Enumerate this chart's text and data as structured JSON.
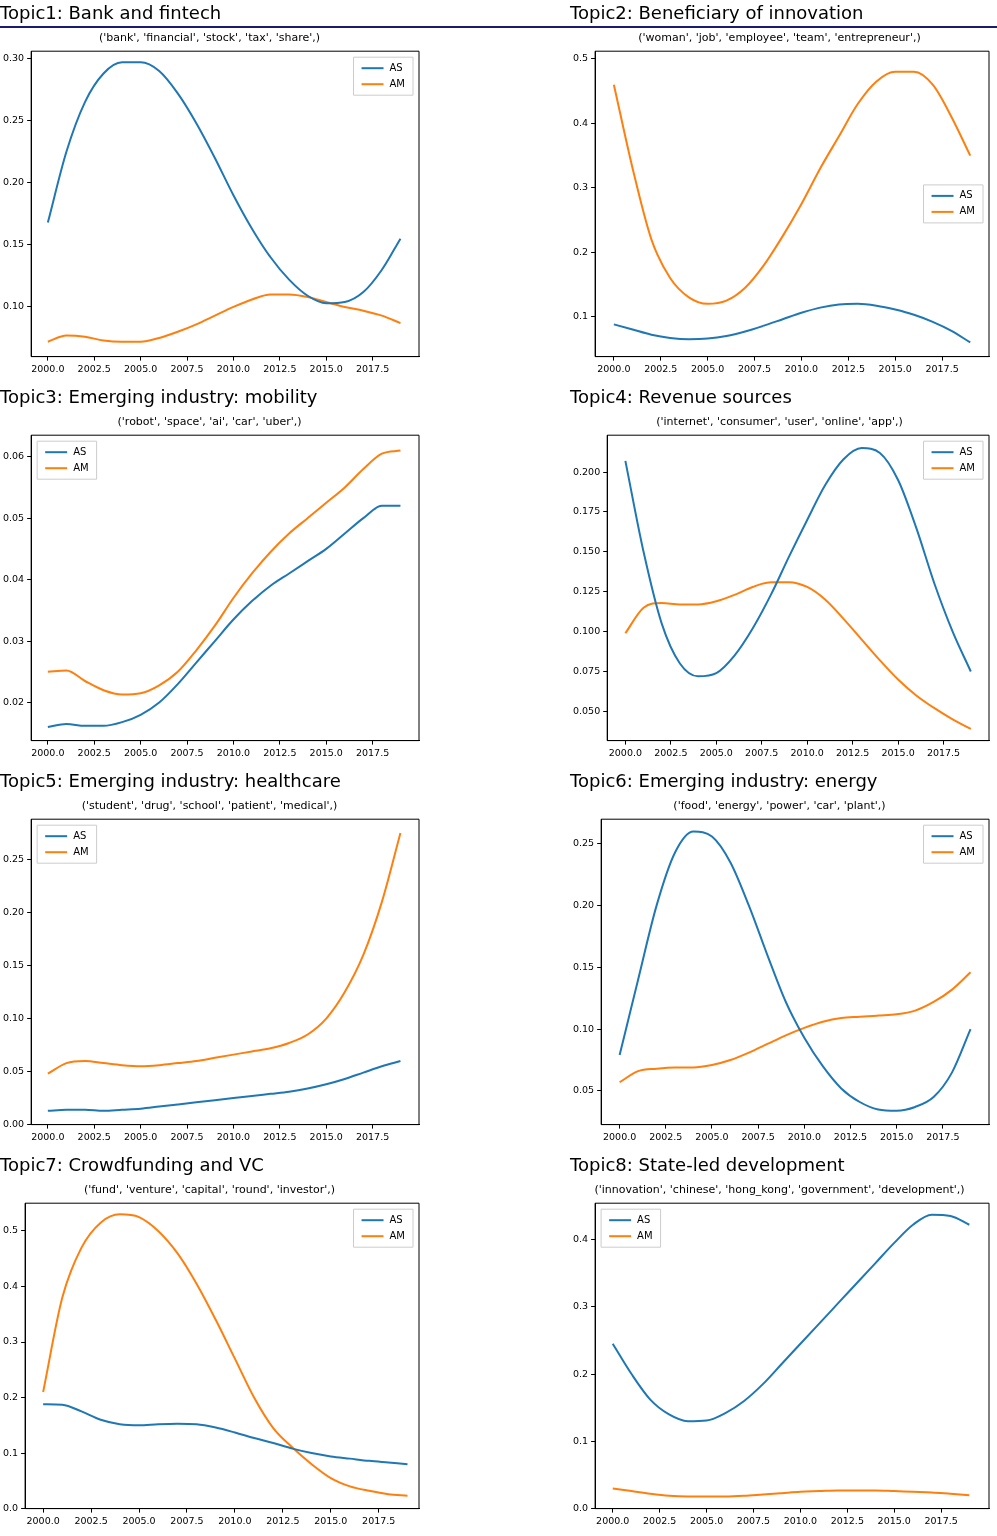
{
  "chart_data": [
    {
      "type": "line",
      "title": "Topic1: Bank and fintech",
      "subtitle": "('bank', 'financial', 'stock', 'tax', 'share',)",
      "x": [
        2000,
        2001,
        2002,
        2003,
        2004,
        2005,
        2006,
        2007,
        2008,
        2009,
        2010,
        2011,
        2012,
        2013,
        2014,
        2015,
        2016,
        2017,
        2018,
        2019
      ],
      "xlim": [
        1999.1,
        2020.0
      ],
      "xticks": [
        {
          "value": 2000,
          "label": "2000.0"
        },
        {
          "value": 2002.5,
          "label": "2002.5"
        },
        {
          "value": 2005,
          "label": "2005.0"
        },
        {
          "value": 2007.5,
          "label": "2007.5"
        },
        {
          "value": 2010,
          "label": "2010.0"
        },
        {
          "value": 2012.5,
          "label": "2012.5"
        },
        {
          "value": 2015,
          "label": "2015.0"
        },
        {
          "value": 2017.5,
          "label": "2017.5"
        }
      ],
      "ylim": [
        0.06,
        0.306
      ],
      "yticks": [
        {
          "value": 0.1,
          "label": "0.10"
        },
        {
          "value": 0.15,
          "label": "0.15"
        },
        {
          "value": 0.2,
          "label": "0.20"
        },
        {
          "value": 0.25,
          "label": "0.25"
        },
        {
          "value": 0.3,
          "label": "0.30"
        }
      ],
      "legend": "top right",
      "series": [
        {
          "name": "AS",
          "color": "#1f77b4",
          "values": [
            0.168,
            0.225,
            0.265,
            0.288,
            0.297,
            0.297,
            0.29,
            0.272,
            0.248,
            0.22,
            0.19,
            0.163,
            0.14,
            0.122,
            0.109,
            0.103,
            0.104,
            0.112,
            0.13,
            0.155
          ]
        },
        {
          "name": "AM",
          "color": "#ff7f0e",
          "values": [
            0.072,
            0.077,
            0.076,
            0.073,
            0.072,
            0.072,
            0.075,
            0.08,
            0.086,
            0.093,
            0.1,
            0.106,
            0.11,
            0.11,
            0.108,
            0.104,
            0.1,
            0.097,
            0.093,
            0.087
          ]
        }
      ]
    },
    {
      "type": "line",
      "title": "Topic2: Beneficiary of innovation",
      "subtitle": "('woman', 'job', 'employee', 'team', 'entrepreneur',)",
      "x": [
        2000,
        2001,
        2002,
        2003,
        2004,
        2005,
        2006,
        2007,
        2008,
        2009,
        2010,
        2011,
        2012,
        2013,
        2014,
        2015,
        2016,
        2017,
        2018,
        2019
      ],
      "xlim": [
        1999.0,
        2020.0
      ],
      "xticks": [
        {
          "value": 2000,
          "label": "2000.0"
        },
        {
          "value": 2002.5,
          "label": "2002.5"
        },
        {
          "value": 2005,
          "label": "2005.0"
        },
        {
          "value": 2007.5,
          "label": "2007.5"
        },
        {
          "value": 2010,
          "label": "2010.0"
        },
        {
          "value": 2012.5,
          "label": "2012.5"
        },
        {
          "value": 2015,
          "label": "2015.0"
        },
        {
          "value": 2017.5,
          "label": "2017.5"
        }
      ],
      "ylim": [
        0.038,
        0.512
      ],
      "yticks": [
        0.1,
        0.2,
        0.3,
        0.4,
        0.5
      ],
      "legend": "right",
      "series": [
        {
          "name": "AS",
          "color": "#1f77b4",
          "values": [
            0.088,
            0.08,
            0.072,
            0.067,
            0.065,
            0.066,
            0.07,
            0.077,
            0.086,
            0.096,
            0.106,
            0.114,
            0.119,
            0.12,
            0.117,
            0.111,
            0.103,
            0.092,
            0.078,
            0.06
          ]
        },
        {
          "name": "AM",
          "color": "#ff7f0e",
          "values": [
            0.46,
            0.33,
            0.22,
            0.16,
            0.13,
            0.12,
            0.125,
            0.145,
            0.18,
            0.225,
            0.275,
            0.33,
            0.38,
            0.43,
            0.465,
            0.48,
            0.48,
            0.46,
            0.41,
            0.35
          ]
        }
      ]
    },
    {
      "type": "line",
      "title": "Topic3: Emerging industry: mobility",
      "subtitle": "('robot', 'space', 'ai', 'car', 'uber',)",
      "x": [
        2000,
        2001,
        2002,
        2003,
        2004,
        2005,
        2006,
        2007,
        2008,
        2009,
        2010,
        2011,
        2012,
        2013,
        2014,
        2015,
        2016,
        2017,
        2018,
        2019
      ],
      "xlim": [
        1999.1,
        2020.0
      ],
      "xticks": [
        {
          "value": 2000,
          "label": "2000.0"
        },
        {
          "value": 2002.5,
          "label": "2002.5"
        },
        {
          "value": 2005,
          "label": "2005.0"
        },
        {
          "value": 2007.5,
          "label": "2007.5"
        },
        {
          "value": 2010,
          "label": "2010.0"
        },
        {
          "value": 2012.5,
          "label": "2012.5"
        },
        {
          "value": 2015,
          "label": "2015.0"
        },
        {
          "value": 2017.5,
          "label": "2017.5"
        }
      ],
      "ylim": [
        0.0138,
        0.0635
      ],
      "yticks": [
        0.02,
        0.03,
        0.04,
        0.05,
        0.06
      ],
      "legend": "top left",
      "series": [
        {
          "name": "AS",
          "color": "#1f77b4",
          "values": [
            0.016,
            0.0165,
            0.0162,
            0.0162,
            0.0168,
            0.018,
            0.02,
            0.023,
            0.0265,
            0.03,
            0.0335,
            0.0365,
            0.039,
            0.041,
            0.043,
            0.045,
            0.0475,
            0.05,
            0.052,
            0.052
          ]
        },
        {
          "name": "AM",
          "color": "#ff7f0e",
          "values": [
            0.025,
            0.0252,
            0.0235,
            0.022,
            0.0213,
            0.0215,
            0.0228,
            0.025,
            0.0285,
            0.0325,
            0.037,
            0.041,
            0.0445,
            0.0475,
            0.05,
            0.0525,
            0.055,
            0.058,
            0.0605,
            0.061
          ]
        }
      ]
    },
    {
      "type": "line",
      "title": "Topic4: Revenue sources",
      "subtitle": "('internet', 'consumer', 'user', 'online', 'app',)",
      "x": [
        2000,
        2001,
        2002,
        2003,
        2004,
        2005,
        2006,
        2007,
        2008,
        2009,
        2010,
        2011,
        2012,
        2013,
        2014,
        2015,
        2016,
        2017,
        2018,
        2019
      ],
      "xlim": [
        1999.0,
        2020.0
      ],
      "xticks": [
        {
          "value": 2000,
          "label": "2000.0"
        },
        {
          "value": 2002.5,
          "label": "2002.5"
        },
        {
          "value": 2005,
          "label": "2005.0"
        },
        {
          "value": 2007.5,
          "label": "2007.5"
        },
        {
          "value": 2010,
          "label": "2010.0"
        },
        {
          "value": 2012.5,
          "label": "2012.5"
        },
        {
          "value": 2015,
          "label": "2015.0"
        },
        {
          "value": 2017.5,
          "label": "2017.5"
        }
      ],
      "ylim": [
        0.0317,
        0.2231
      ],
      "yticks": [
        {
          "value": 0.05,
          "label": "0.050"
        },
        {
          "value": 0.075,
          "label": "0.075"
        },
        {
          "value": 0.1,
          "label": "0.100"
        },
        {
          "value": 0.125,
          "label": "0.125"
        },
        {
          "value": 0.15,
          "label": "0.150"
        },
        {
          "value": 0.175,
          "label": "0.175"
        },
        {
          "value": 0.2,
          "label": "0.200"
        }
      ],
      "legend": "top right",
      "series": [
        {
          "name": "AS",
          "color": "#1f77b4",
          "values": [
            0.207,
            0.15,
            0.105,
            0.08,
            0.072,
            0.074,
            0.085,
            0.102,
            0.123,
            0.147,
            0.17,
            0.192,
            0.208,
            0.215,
            0.212,
            0.195,
            0.165,
            0.13,
            0.1,
            0.075
          ]
        },
        {
          "name": "AM",
          "color": "#ff7f0e",
          "values": [
            0.099,
            0.115,
            0.118,
            0.117,
            0.117,
            0.119,
            0.123,
            0.128,
            0.131,
            0.131,
            0.128,
            0.12,
            0.108,
            0.095,
            0.082,
            0.07,
            0.06,
            0.052,
            0.045,
            0.039
          ]
        }
      ]
    },
    {
      "type": "line",
      "title": "Topic5: Emerging industry: healthcare",
      "subtitle": "('student', 'drug', 'school', 'patient', 'medical',)",
      "x": [
        2000,
        2001,
        2002,
        2003,
        2004,
        2005,
        2006,
        2007,
        2008,
        2009,
        2010,
        2011,
        2012,
        2013,
        2014,
        2015,
        2016,
        2017,
        2018,
        2019
      ],
      "xlim": [
        1999.1,
        2020.0
      ],
      "xticks": [
        {
          "value": 2000,
          "label": "2000.0"
        },
        {
          "value": 2002.5,
          "label": "2002.5"
        },
        {
          "value": 2005,
          "label": "2005.0"
        },
        {
          "value": 2007.5,
          "label": "2007.5"
        },
        {
          "value": 2010,
          "label": "2010.0"
        },
        {
          "value": 2012.5,
          "label": "2012.5"
        },
        {
          "value": 2015,
          "label": "2015.0"
        },
        {
          "value": 2017.5,
          "label": "2017.5"
        }
      ],
      "ylim": [
        0,
        0.288
      ],
      "yticks": [
        {
          "value": 0,
          "label": "0.00"
        },
        {
          "value": 0.05,
          "label": "0.05"
        },
        {
          "value": 0.1,
          "label": "0.10"
        },
        {
          "value": 0.15,
          "label": "0.15"
        },
        {
          "value": 0.2,
          "label": "0.20"
        },
        {
          "value": 0.25,
          "label": "0.25"
        }
      ],
      "legend": "top left",
      "series": [
        {
          "name": "AS",
          "color": "#1f77b4",
          "values": [
            0.013,
            0.014,
            0.014,
            0.013,
            0.014,
            0.015,
            0.017,
            0.019,
            0.021,
            0.023,
            0.025,
            0.027,
            0.029,
            0.031,
            0.034,
            0.038,
            0.043,
            0.049,
            0.055,
            0.06
          ]
        },
        {
          "name": "AM",
          "color": "#ff7f0e",
          "values": [
            0.048,
            0.058,
            0.06,
            0.058,
            0.056,
            0.055,
            0.056,
            0.058,
            0.06,
            0.063,
            0.066,
            0.069,
            0.072,
            0.077,
            0.085,
            0.1,
            0.125,
            0.16,
            0.21,
            0.275
          ]
        }
      ]
    },
    {
      "type": "line",
      "title": "Topic6: Emerging industry: energy",
      "subtitle": "('food', 'energy', 'power', 'car', 'plant',)",
      "x": [
        2000,
        2001,
        2002,
        2003,
        2004,
        2005,
        2006,
        2007,
        2008,
        2009,
        2010,
        2011,
        2012,
        2013,
        2014,
        2015,
        2016,
        2017,
        2018,
        2019
      ],
      "xlim": [
        1999.0,
        2020.0
      ],
      "xticks": [
        {
          "value": 2000,
          "label": "2000.0"
        },
        {
          "value": 2002.5,
          "label": "2002.5"
        },
        {
          "value": 2005,
          "label": "2005.0"
        },
        {
          "value": 2007.5,
          "label": "2007.5"
        },
        {
          "value": 2010,
          "label": "2010.0"
        },
        {
          "value": 2012.5,
          "label": "2012.5"
        },
        {
          "value": 2015,
          "label": "2015.0"
        },
        {
          "value": 2017.5,
          "label": "2017.5"
        }
      ],
      "ylim": [
        0.0227,
        0.27
      ],
      "yticks": [
        0.05,
        {
          "value": 0.1,
          "label": "0.10"
        },
        0.15,
        {
          "value": 0.2,
          "label": "0.20"
        },
        0.25
      ],
      "legend": "top right",
      "series": [
        {
          "name": "AS",
          "color": "#1f77b4",
          "values": [
            0.079,
            0.14,
            0.2,
            0.243,
            0.26,
            0.256,
            0.235,
            0.2,
            0.16,
            0.122,
            0.093,
            0.07,
            0.052,
            0.041,
            0.035,
            0.034,
            0.037,
            0.045,
            0.065,
            0.1
          ]
        },
        {
          "name": "AM",
          "color": "#ff7f0e",
          "values": [
            0.057,
            0.066,
            0.068,
            0.069,
            0.069,
            0.071,
            0.075,
            0.081,
            0.088,
            0.095,
            0.101,
            0.106,
            0.109,
            0.11,
            0.111,
            0.112,
            0.115,
            0.122,
            0.132,
            0.146
          ]
        }
      ]
    },
    {
      "type": "line",
      "title": "Topic7: Crowdfunding and VC",
      "subtitle": "('fund', 'venture', 'capital', 'round', 'investor',)",
      "x": [
        2000,
        2001,
        2002,
        2003,
        2004,
        2005,
        2006,
        2007,
        2008,
        2009,
        2010,
        2011,
        2012,
        2013,
        2014,
        2015,
        2016,
        2017,
        2018,
        2019
      ],
      "xlim": [
        1999.06,
        2019.6
      ],
      "xticks": [
        {
          "value": 2000,
          "label": "2000.0"
        },
        {
          "value": 2002.5,
          "label": "2002.5"
        },
        {
          "value": 2005,
          "label": "2005.0"
        },
        {
          "value": 2007.5,
          "label": "2007.5"
        },
        {
          "value": 2010,
          "label": "2010.0"
        },
        {
          "value": 2012.5,
          "label": "2012.5"
        },
        {
          "value": 2015,
          "label": "2015.0"
        },
        {
          "value": 2017.5,
          "label": "2017.5"
        }
      ],
      "ylim": [
        0,
        0.55
      ],
      "yticks": [
        {
          "value": 0,
          "label": "0.0"
        },
        0.1,
        0.2,
        0.3,
        0.4,
        0.5
      ],
      "legend": "top right",
      "series": [
        {
          "name": "AS",
          "color": "#1f77b4",
          "values": [
            0.188,
            0.187,
            0.175,
            0.16,
            0.152,
            0.15,
            0.152,
            0.153,
            0.152,
            0.146,
            0.137,
            0.127,
            0.118,
            0.108,
            0.1,
            0.094,
            0.09,
            0.086,
            0.083,
            0.08
          ]
        },
        {
          "name": "AM",
          "color": "#ff7f0e",
          "values": [
            0.21,
            0.38,
            0.47,
            0.515,
            0.53,
            0.525,
            0.5,
            0.46,
            0.405,
            0.34,
            0.27,
            0.2,
            0.145,
            0.11,
            0.08,
            0.055,
            0.04,
            0.032,
            0.026,
            0.023
          ]
        }
      ]
    },
    {
      "type": "line",
      "title": "Topic8: State-led development",
      "subtitle": "('innovation', 'chinese', 'hong_kong', 'government', 'development',)",
      "x": [
        2000,
        2001,
        2002,
        2003,
        2004,
        2005,
        2006,
        2007,
        2008,
        2009,
        2010,
        2011,
        2012,
        2013,
        2014,
        2015,
        2016,
        2017,
        2018,
        2019
      ],
      "xlim": [
        1999.06,
        2020.05
      ],
      "xticks": [
        {
          "value": 2000,
          "label": "2000.0"
        },
        {
          "value": 2002.5,
          "label": "2002.5"
        },
        {
          "value": 2005,
          "label": "2005.0"
        },
        {
          "value": 2007.5,
          "label": "2007.5"
        },
        {
          "value": 2010,
          "label": "2010.0"
        },
        {
          "value": 2012.5,
          "label": "2012.5"
        },
        {
          "value": 2015,
          "label": "2015.0"
        },
        {
          "value": 2017.5,
          "label": "2017.5"
        }
      ],
      "ylim": [
        0,
        0.454
      ],
      "yticks": [
        {
          "value": 0,
          "label": "0.0"
        },
        0.1,
        0.2,
        0.3,
        0.4
      ],
      "legend": "top left",
      "series": [
        {
          "name": "AS",
          "color": "#1f77b4",
          "values": [
            0.245,
            0.2,
            0.162,
            0.14,
            0.13,
            0.131,
            0.142,
            0.16,
            0.185,
            0.215,
            0.245,
            0.275,
            0.305,
            0.335,
            0.365,
            0.395,
            0.422,
            0.437,
            0.435,
            0.422
          ]
        },
        {
          "name": "AM",
          "color": "#ff7f0e",
          "values": [
            0.03,
            0.026,
            0.022,
            0.019,
            0.018,
            0.018,
            0.018,
            0.019,
            0.021,
            0.023,
            0.025,
            0.026,
            0.027,
            0.027,
            0.027,
            0.026,
            0.025,
            0.024,
            0.022,
            0.02
          ]
        }
      ]
    }
  ]
}
